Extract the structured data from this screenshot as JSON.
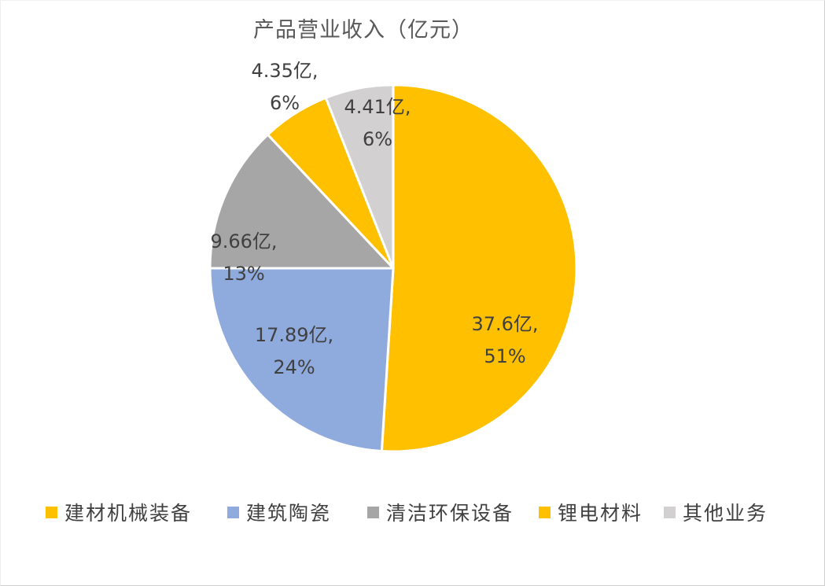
{
  "page": {
    "background": "#FFFFFF",
    "border_color": "#CFCFCF"
  },
  "colors": {
    "title_text": "#595959",
    "label_text": "#404040",
    "legend_text": "#404040",
    "slice_border": "#FFFFFF"
  },
  "chart_data": {
    "type": "pie",
    "title": "产品营业收入（亿元）",
    "unit": "亿元",
    "legend_position": "bottom",
    "start_angle_deg": 0,
    "direction": "clockwise",
    "total_percent": 100,
    "slices": [
      {
        "name": "building-materials-machinery",
        "label": "建材机械装备",
        "value": 37.6,
        "percent": 51,
        "color": "#FFC000",
        "label_lines": [
          "37.6亿,",
          "51%"
        ],
        "label_placement": "inside"
      },
      {
        "name": "building-ceramics",
        "label": "建筑陶瓷",
        "value": 17.89,
        "percent": 24,
        "color": "#8FAADC",
        "label_lines": [
          "17.89亿,",
          "24%"
        ],
        "label_placement": "inside"
      },
      {
        "name": "cleaning-env-equipment",
        "label": "清洁环保设备",
        "value": 9.66,
        "percent": 13,
        "color": "#A6A6A6",
        "label_lines": [
          "9.66亿,",
          "13%"
        ],
        "label_placement": "inside"
      },
      {
        "name": "lithium-battery-materials",
        "label": "锂电材料",
        "value": 4.35,
        "percent": 6,
        "color": "#FFC000",
        "label_lines": [
          "4.35亿,",
          "6%"
        ],
        "label_placement": "outside"
      },
      {
        "name": "other-business",
        "label": "其他业务",
        "value": 4.41,
        "percent": 6,
        "color": "#D2D0D0",
        "label_lines": [
          "4.41亿,",
          "6%"
        ],
        "label_placement": "inside"
      }
    ]
  }
}
